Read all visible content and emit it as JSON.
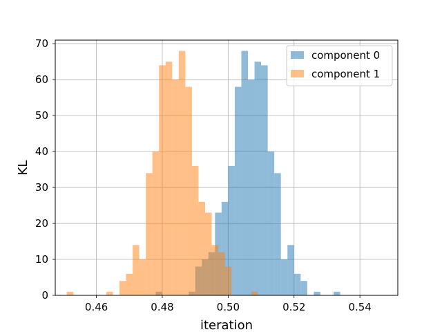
{
  "chart_data": {
    "type": "bar",
    "title": "",
    "xlabel": "iteration",
    "ylabel": "KL",
    "xlim": [
      0.4475,
      0.5515
    ],
    "ylim": [
      0,
      71
    ],
    "xticks": [
      0.46,
      0.48,
      0.5,
      0.52,
      0.54
    ],
    "xtick_labels": [
      "0.46",
      "0.48",
      "0.50",
      "0.52",
      "0.54"
    ],
    "yticks": [
      0,
      10,
      20,
      30,
      40,
      50,
      60,
      70
    ],
    "ytick_labels": [
      "0",
      "10",
      "20",
      "30",
      "40",
      "50",
      "60",
      "70"
    ],
    "grid": true,
    "legend_position": "top-right",
    "bin_width": 0.002,
    "series": [
      {
        "name": "component 0",
        "color": "#1f77b4",
        "alpha": 0.5,
        "bins": [
          {
            "x0": 0.478,
            "value": 1
          },
          {
            "x0": 0.482,
            "value": 0
          },
          {
            "x0": 0.484,
            "value": 0
          },
          {
            "x0": 0.486,
            "value": 0
          },
          {
            "x0": 0.488,
            "value": 1
          },
          {
            "x0": 0.49,
            "value": 8
          },
          {
            "x0": 0.492,
            "value": 10
          },
          {
            "x0": 0.494,
            "value": 12
          },
          {
            "x0": 0.496,
            "value": 23
          },
          {
            "x0": 0.498,
            "value": 26
          },
          {
            "x0": 0.5,
            "value": 36
          },
          {
            "x0": 0.502,
            "value": 58
          },
          {
            "x0": 0.504,
            "value": 68
          },
          {
            "x0": 0.506,
            "value": 60
          },
          {
            "x0": 0.508,
            "value": 65
          },
          {
            "x0": 0.51,
            "value": 64
          },
          {
            "x0": 0.512,
            "value": 40
          },
          {
            "x0": 0.514,
            "value": 34
          },
          {
            "x0": 0.516,
            "value": 10
          },
          {
            "x0": 0.518,
            "value": 14
          },
          {
            "x0": 0.52,
            "value": 6
          },
          {
            "x0": 0.522,
            "value": 4
          },
          {
            "x0": 0.524,
            "value": 0
          },
          {
            "x0": 0.526,
            "value": 1
          },
          {
            "x0": 0.528,
            "value": 0
          },
          {
            "x0": 0.53,
            "value": 0
          },
          {
            "x0": 0.532,
            "value": 1
          }
        ]
      },
      {
        "name": "component 1",
        "color": "#ff7f0e",
        "alpha": 0.5,
        "bins": [
          {
            "x0": 0.451,
            "value": 1
          },
          {
            "x0": 0.463,
            "value": 1
          },
          {
            "x0": 0.467,
            "value": 4
          },
          {
            "x0": 0.469,
            "value": 6
          },
          {
            "x0": 0.471,
            "value": 14
          },
          {
            "x0": 0.473,
            "value": 10
          },
          {
            "x0": 0.475,
            "value": 34
          },
          {
            "x0": 0.477,
            "value": 40
          },
          {
            "x0": 0.479,
            "value": 64
          },
          {
            "x0": 0.481,
            "value": 65
          },
          {
            "x0": 0.483,
            "value": 60
          },
          {
            "x0": 0.485,
            "value": 68
          },
          {
            "x0": 0.487,
            "value": 58
          },
          {
            "x0": 0.489,
            "value": 36
          },
          {
            "x0": 0.491,
            "value": 26
          },
          {
            "x0": 0.493,
            "value": 23
          },
          {
            "x0": 0.495,
            "value": 14
          },
          {
            "x0": 0.497,
            "value": 12
          },
          {
            "x0": 0.499,
            "value": 8
          },
          {
            "x0": 0.501,
            "value": 0
          },
          {
            "x0": 0.503,
            "value": 0
          },
          {
            "x0": 0.505,
            "value": 0
          },
          {
            "x0": 0.507,
            "value": 1
          }
        ]
      }
    ]
  }
}
